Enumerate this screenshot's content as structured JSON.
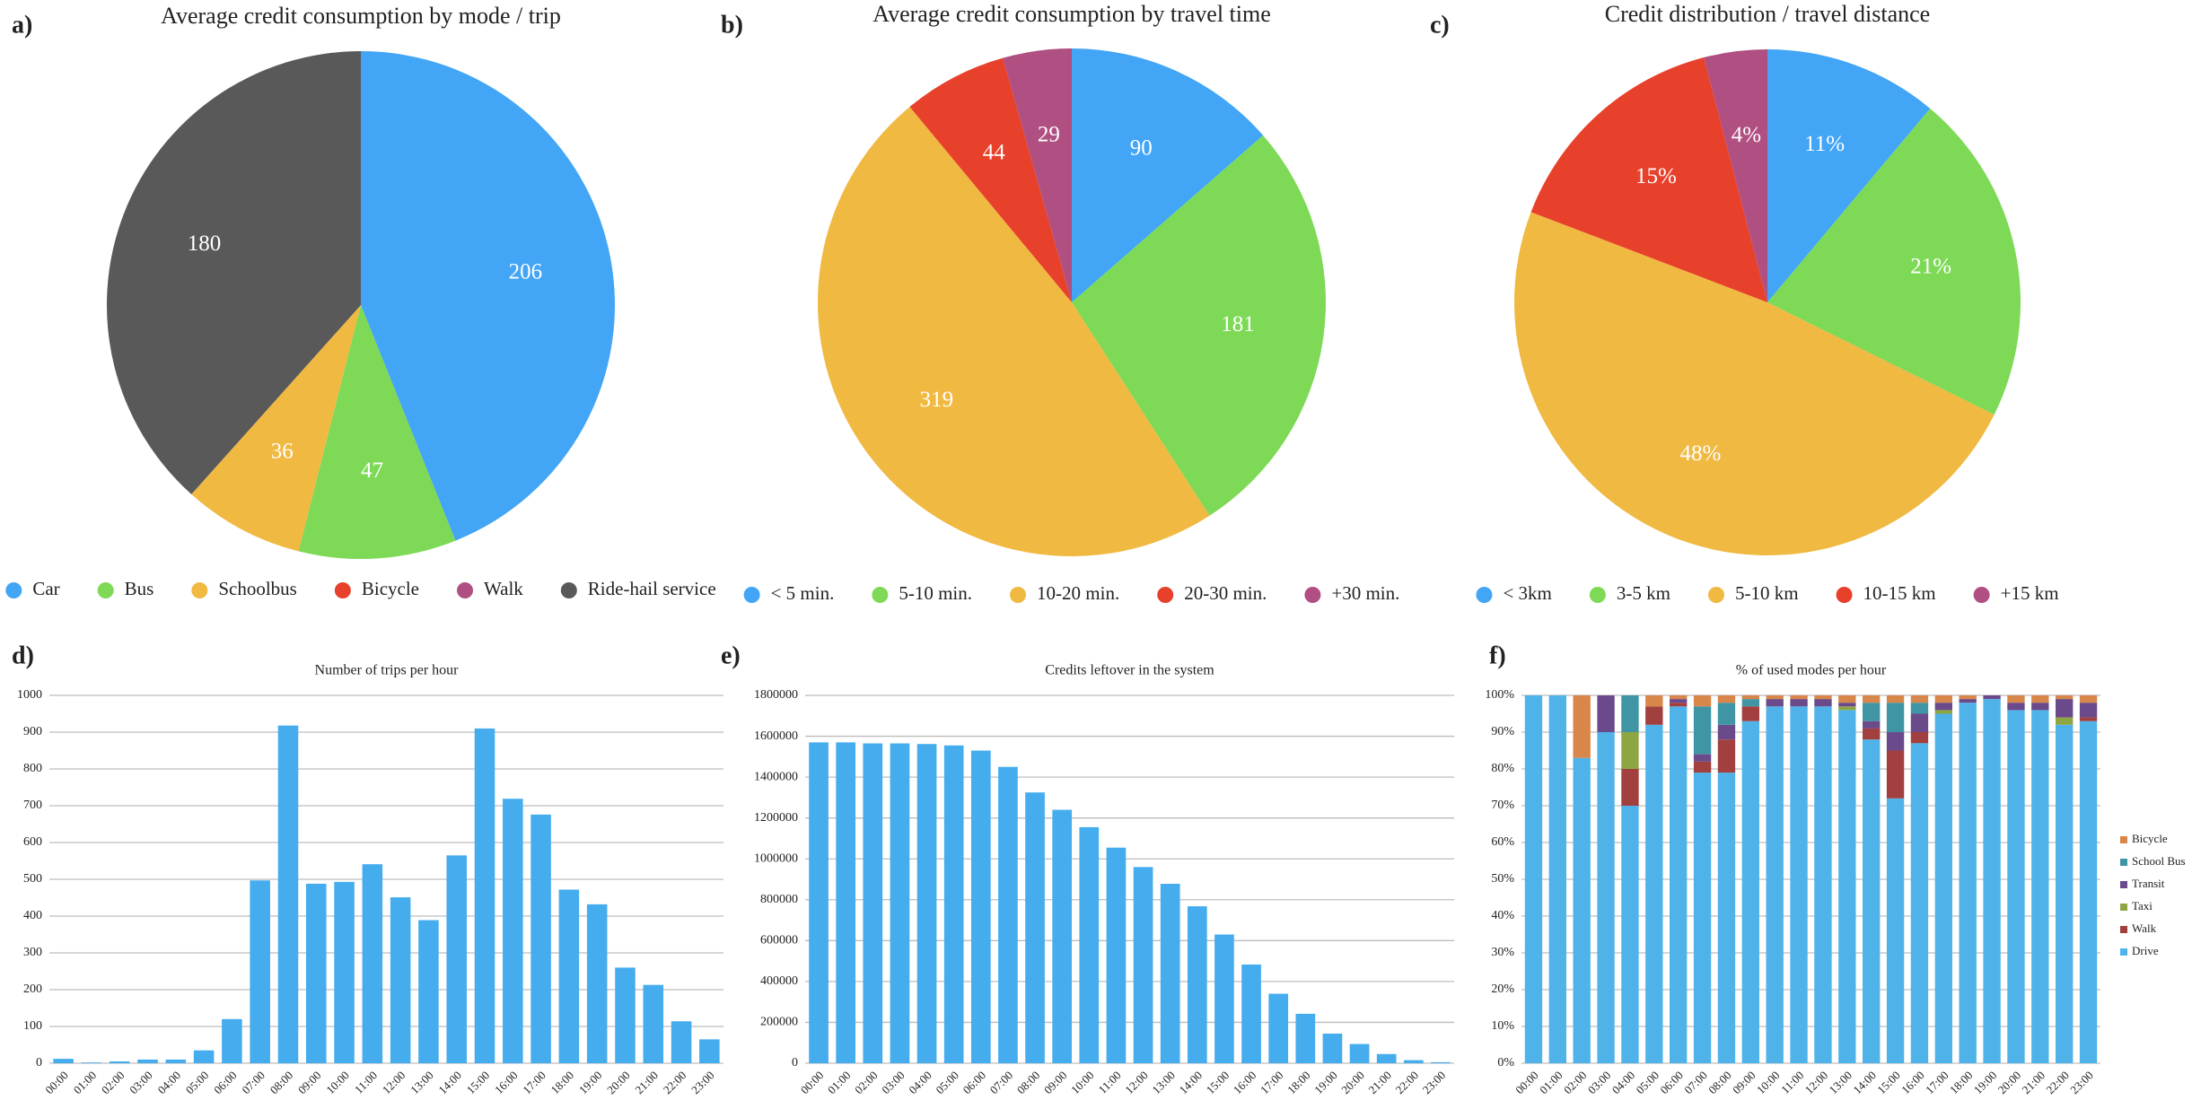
{
  "chart_data": [
    {
      "type": "pie",
      "panel": "a)",
      "title": "Average credit consumption by mode / trip",
      "categories": [
        "Car",
        "Bus",
        "Schoolbus",
        "Bicycle",
        "Walk",
        "Ride-hail service"
      ],
      "values": [
        206,
        47,
        36,
        0,
        0,
        180
      ],
      "colors": [
        "#42a5f5",
        "#7ed957",
        "#f0b942",
        "#e8412b",
        "#b04f82",
        "#595959"
      ]
    },
    {
      "type": "pie",
      "panel": "b)",
      "title": "Average credit consumption by travel time",
      "categories": [
        "< 5 min.",
        "5-10 min.",
        "10-20 min.",
        "20-30 min.",
        "+30 min."
      ],
      "values": [
        90,
        181,
        319,
        44,
        29
      ],
      "colors": [
        "#42a5f5",
        "#7ed957",
        "#f0b942",
        "#e8412b",
        "#b04f82"
      ]
    },
    {
      "type": "pie",
      "panel": "c)",
      "title": "Credit distribution / travel distance",
      "categories": [
        "< 3km",
        "3-5 km",
        "5-10 km",
        "10-15 km",
        "+15 km"
      ],
      "values": [
        11,
        21,
        48,
        15,
        4
      ],
      "value_labels": [
        "11%",
        "21%",
        "48%",
        "15%",
        "4%"
      ],
      "colors": [
        "#42a5f5",
        "#7ed957",
        "#f0b942",
        "#e8412b",
        "#b04f82"
      ]
    },
    {
      "type": "bar",
      "panel": "d)",
      "title": "Number of trips per hour",
      "categories": [
        "00:00",
        "01:00",
        "02:00",
        "03:00",
        "04:00",
        "05:00",
        "06:00",
        "07:00",
        "08:00",
        "09:00",
        "10:00",
        "11:00",
        "12:00",
        "13:00",
        "14:00",
        "15:00",
        "16:00",
        "17:00",
        "18:00",
        "19:00",
        "20:00",
        "21:00",
        "22:00",
        "23:00"
      ],
      "values": [
        12,
        2,
        5,
        10,
        10,
        35,
        120,
        497,
        918,
        488,
        493,
        541,
        451,
        389,
        565,
        910,
        719,
        676,
        472,
        432,
        260,
        213,
        114,
        65
      ],
      "color": "#45acee",
      "ylim": [
        0,
        1000
      ],
      "yticks": [
        0,
        100,
        200,
        300,
        400,
        500,
        600,
        700,
        800,
        900,
        1000
      ],
      "grid": true
    },
    {
      "type": "bar",
      "panel": "e)",
      "title": "Credits leftover  in the system",
      "categories": [
        "00:00",
        "01:00",
        "02:00",
        "03:00",
        "04:00",
        "05:00",
        "06:00",
        "07:00",
        "08:00",
        "09:00",
        "10:00",
        "11:00",
        "12:00",
        "13:00",
        "14:00",
        "15:00",
        "16:00",
        "17:00",
        "18:00",
        "19:00",
        "20:00",
        "21:00",
        "22:00",
        "23:00"
      ],
      "values": [
        1570000,
        1570000,
        1565000,
        1565000,
        1562000,
        1555000,
        1530000,
        1450000,
        1325000,
        1240000,
        1155000,
        1055000,
        960000,
        878000,
        768000,
        630000,
        483000,
        340000,
        242000,
        145000,
        94000,
        45000,
        15000,
        5000
      ],
      "color": "#45acee",
      "ylim": [
        0,
        1800000
      ],
      "yticks": [
        0,
        200000,
        400000,
        600000,
        800000,
        1000000,
        1200000,
        1400000,
        1600000,
        1800000
      ],
      "grid": true
    },
    {
      "type": "stacked_bar",
      "panel": "f)",
      "title": "% of used modes per hour",
      "categories": [
        "00:00",
        "01:00",
        "02:00",
        "03:00",
        "04:00",
        "05:00",
        "06:00",
        "07:00",
        "08:00",
        "09:00",
        "10:00",
        "11:00",
        "12:00",
        "13:00",
        "14:00",
        "15:00",
        "16:00",
        "17:00",
        "18:00",
        "19:00",
        "20:00",
        "21:00",
        "22:00",
        "23:00"
      ],
      "series": [
        {
          "name": "Drive",
          "color": "#4fb3ea",
          "values": [
            100,
            100,
            83,
            90,
            70,
            92,
            97,
            79,
            79,
            93,
            97,
            97,
            97,
            96,
            88,
            72,
            87,
            95,
            98,
            99,
            96,
            96,
            92,
            93
          ]
        },
        {
          "name": "Walk",
          "color": "#a23f3f",
          "values": [
            0,
            0,
            0,
            0,
            10,
            5,
            1,
            3,
            9,
            4,
            0,
            0,
            0,
            0,
            3,
            13,
            3,
            0,
            0,
            0,
            0,
            0,
            0,
            1
          ]
        },
        {
          "name": "Taxi",
          "color": "#8ea642",
          "values": [
            0,
            0,
            0,
            0,
            10,
            0,
            0,
            0,
            0,
            0,
            0,
            0,
            0,
            1,
            0,
            0,
            0,
            1,
            0,
            0,
            0,
            0,
            2,
            0
          ]
        },
        {
          "name": "Transit",
          "color": "#6b4a8c",
          "values": [
            0,
            0,
            0,
            10,
            0,
            0,
            1,
            2,
            4,
            0,
            2,
            2,
            2,
            1,
            2,
            5,
            5,
            2,
            1,
            1,
            2,
            2,
            5,
            4
          ]
        },
        {
          "name": "School Bus",
          "color": "#3f95a3",
          "values": [
            0,
            0,
            0,
            0,
            10,
            0,
            0,
            13,
            6,
            2,
            0,
            0,
            0,
            0,
            5,
            8,
            3,
            0,
            0,
            0,
            0,
            0,
            0,
            0
          ]
        },
        {
          "name": "Bicycle",
          "color": "#d9864a",
          "values": [
            0,
            0,
            17,
            0,
            0,
            3,
            1,
            3,
            2,
            1,
            1,
            1,
            1,
            2,
            2,
            2,
            2,
            2,
            1,
            0,
            2,
            2,
            1,
            2
          ]
        }
      ],
      "ylim": [
        0,
        100
      ],
      "yticks": [
        {
          "value": 0,
          "label": "0%"
        },
        {
          "value": 10,
          "label": "10%"
        },
        {
          "value": 20,
          "label": "20%"
        },
        {
          "value": 30,
          "label": "30%"
        },
        {
          "value": 40,
          "label": "40%"
        },
        {
          "value": 50,
          "label": "50%"
        },
        {
          "value": 60,
          "label": "60%"
        },
        {
          "value": 70,
          "label": "70%"
        },
        {
          "value": 80,
          "label": "80%"
        },
        {
          "value": 90,
          "label": "90%"
        },
        {
          "value": 100,
          "label": "100%"
        }
      ],
      "grid": true
    }
  ]
}
